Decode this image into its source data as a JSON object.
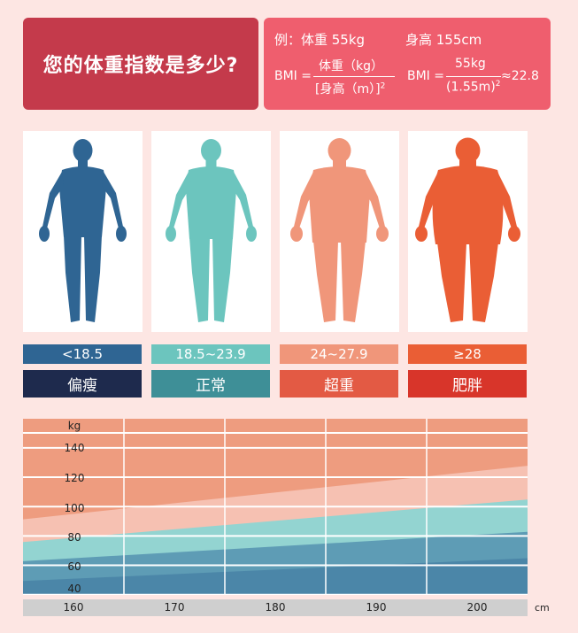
{
  "title": "您的体重指数是多少?",
  "formula": {
    "example": "例：体重 55kg",
    "height": "身高 155cm",
    "bmi_label": "BMI =",
    "numerator": "体重（kg）",
    "denominator": "[身高（m）]",
    "exponent": "2",
    "bmi_label2": "BMI =",
    "numerator2": "55kg",
    "denominator2": "(1.55m)",
    "exponent2": "2",
    "result": "≈22.8"
  },
  "categories": [
    {
      "range": "<18.5",
      "label": "偏瘦",
      "color": "#2f6593",
      "dark": "#1e2a4d"
    },
    {
      "range": "18.5~23.9",
      "label": "正常",
      "color": "#6cc5be",
      "dark": "#3e8f97"
    },
    {
      "range": "24~27.9",
      "label": "超重",
      "color": "#f0967a",
      "dark": "#e35a44"
    },
    {
      "range": "≥28",
      "label": "肥胖",
      "color": "#ea5e35",
      "dark": "#d8352a"
    }
  ],
  "chart_data": {
    "type": "area",
    "x_ticks": [
      "160",
      "170",
      "180",
      "190",
      "200"
    ],
    "y_ticks": [
      "40",
      "60",
      "80",
      "100",
      "120",
      "140"
    ],
    "x_unit": "cm",
    "y_unit": "kg",
    "xlim": [
      155,
      205
    ],
    "ylim": [
      35,
      155
    ],
    "series": [
      {
        "values": [
          {
            "x": 155,
            "y": 44.5
          },
          {
            "x": 205,
            "y": 60
          }
        ]
      },
      {
        "values": [
          {
            "x": 155,
            "y": 58
          },
          {
            "x": 205,
            "y": 78
          }
        ]
      },
      {
        "values": [
          {
            "x": 155,
            "y": 71
          },
          {
            "x": 205,
            "y": 100
          }
        ]
      },
      {
        "values": [
          {
            "x": 155,
            "y": 86.5
          },
          {
            "x": 205,
            "y": 123
          }
        ]
      }
    ],
    "colors": [
      "#5e9cb5",
      "#93d4d1",
      "#f6c1b2",
      "#ee9c7f"
    ]
  }
}
